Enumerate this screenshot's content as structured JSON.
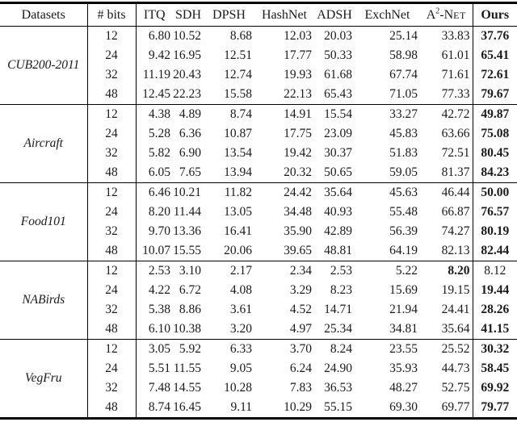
{
  "colors": {
    "text": "#1a1a1a",
    "rule": "#000000",
    "background": "#ffffff"
  },
  "table": {
    "header": {
      "datasets": "Datasets",
      "bits": "# bits",
      "ours": "Ours"
    },
    "method_headers": [
      "ITQ",
      "SDH",
      "DPSH",
      "HashNet",
      "ADSH",
      "ExchNet"
    ],
    "a2net": {
      "base": "A",
      "sup": "2",
      "rest": "-N",
      "smallcaps": "ET"
    },
    "groups": [
      {
        "dataset": "CUB200-2011",
        "rows": [
          {
            "bits": "12",
            "methods": [
              "6.80",
              "10.52",
              "8.68",
              "12.03",
              "20.03",
              "25.14",
              "33.83"
            ],
            "ours": "37.76",
            "ours_bold": true
          },
          {
            "bits": "24",
            "methods": [
              "9.42",
              "16.95",
              "12.51",
              "17.77",
              "50.33",
              "58.98",
              "61.01"
            ],
            "ours": "65.41",
            "ours_bold": true
          },
          {
            "bits": "32",
            "methods": [
              "11.19",
              "20.43",
              "12.74",
              "19.93",
              "61.68",
              "67.74",
              "71.61"
            ],
            "ours": "72.61",
            "ours_bold": true
          },
          {
            "bits": "48",
            "methods": [
              "12.45",
              "22.23",
              "15.58",
              "22.13",
              "65.43",
              "71.05",
              "77.33"
            ],
            "ours": "79.67",
            "ours_bold": true
          }
        ]
      },
      {
        "dataset": "Aircraft",
        "rows": [
          {
            "bits": "12",
            "methods": [
              "4.38",
              "4.89",
              "8.74",
              "14.91",
              "15.54",
              "33.27",
              "42.72"
            ],
            "ours": "49.87",
            "ours_bold": true
          },
          {
            "bits": "24",
            "methods": [
              "5.28",
              "6.36",
              "10.87",
              "17.75",
              "23.09",
              "45.83",
              "63.66"
            ],
            "ours": "75.08",
            "ours_bold": true
          },
          {
            "bits": "32",
            "methods": [
              "5.82",
              "6.90",
              "13.54",
              "19.42",
              "30.37",
              "51.83",
              "72.51"
            ],
            "ours": "80.45",
            "ours_bold": true
          },
          {
            "bits": "48",
            "methods": [
              "6.05",
              "7.65",
              "13.94",
              "20.32",
              "50.65",
              "59.05",
              "81.37"
            ],
            "ours": "84.23",
            "ours_bold": true
          }
        ]
      },
      {
        "dataset": "Food101",
        "rows": [
          {
            "bits": "12",
            "methods": [
              "6.46",
              "10.21",
              "11.82",
              "24.42",
              "35.64",
              "45.63",
              "46.44"
            ],
            "ours": "50.00",
            "ours_bold": true
          },
          {
            "bits": "24",
            "methods": [
              "8.20",
              "11.44",
              "13.05",
              "34.48",
              "40.93",
              "55.48",
              "66.87"
            ],
            "ours": "76.57",
            "ours_bold": true
          },
          {
            "bits": "32",
            "methods": [
              "9.70",
              "13.36",
              "16.41",
              "35.90",
              "42.89",
              "56.39",
              "74.27"
            ],
            "ours": "80.19",
            "ours_bold": true
          },
          {
            "bits": "48",
            "methods": [
              "10.07",
              "15.55",
              "20.06",
              "39.65",
              "48.81",
              "64.19",
              "82.13"
            ],
            "ours": "82.44",
            "ours_bold": true
          }
        ]
      },
      {
        "dataset": "NABirds",
        "rows": [
          {
            "bits": "12",
            "methods": [
              "2.53",
              "3.10",
              "2.17",
              "2.34",
              "2.53",
              "5.22",
              "8.20"
            ],
            "bold_method": 6,
            "ours": "8.12",
            "ours_bold": false
          },
          {
            "bits": "24",
            "methods": [
              "4.22",
              "6.72",
              "4.08",
              "3.29",
              "8.23",
              "15.69",
              "19.15"
            ],
            "ours": "19.44",
            "ours_bold": true
          },
          {
            "bits": "32",
            "methods": [
              "5.38",
              "8.86",
              "3.61",
              "4.52",
              "14.71",
              "21.94",
              "24.41"
            ],
            "ours": "28.26",
            "ours_bold": true
          },
          {
            "bits": "48",
            "methods": [
              "6.10",
              "10.38",
              "3.20",
              "4.97",
              "25.34",
              "34.81",
              "35.64"
            ],
            "ours": "41.15",
            "ours_bold": true
          }
        ]
      },
      {
        "dataset": "VegFru",
        "rows": [
          {
            "bits": "12",
            "methods": [
              "3.05",
              "5.92",
              "6.33",
              "3.70",
              "8.24",
              "23.55",
              "25.52"
            ],
            "ours": "30.32",
            "ours_bold": true
          },
          {
            "bits": "24",
            "methods": [
              "5.51",
              "11.55",
              "9.05",
              "6.24",
              "24.90",
              "35.93",
              "44.73"
            ],
            "ours": "58.45",
            "ours_bold": true
          },
          {
            "bits": "32",
            "methods": [
              "7.48",
              "14.55",
              "10.28",
              "7.83",
              "36.53",
              "48.27",
              "52.75"
            ],
            "ours": "69.92",
            "ours_bold": true
          },
          {
            "bits": "48",
            "methods": [
              "8.74",
              "16.45",
              "9.11",
              "10.29",
              "55.15",
              "69.30",
              "69.77"
            ],
            "ours": "79.77",
            "ours_bold": true
          }
        ]
      }
    ]
  }
}
